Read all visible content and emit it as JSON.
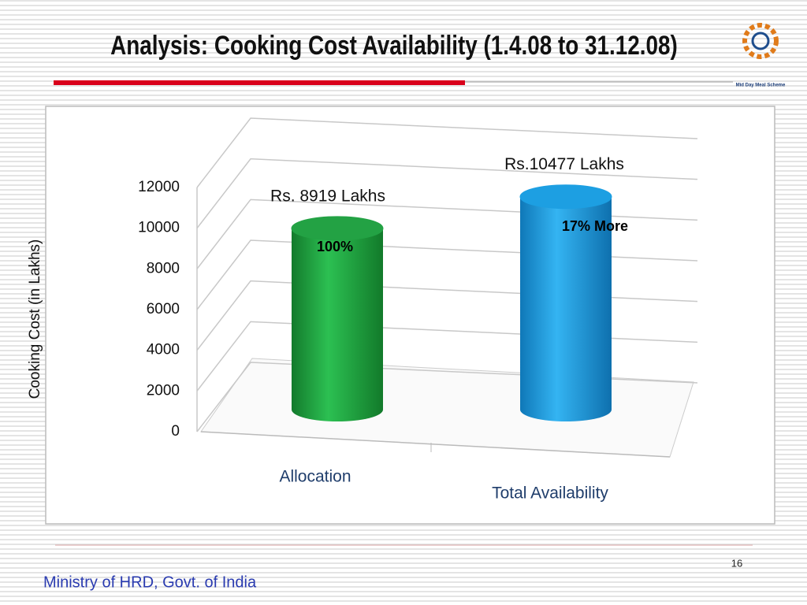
{
  "chart_data": {
    "type": "bar",
    "title": "Analysis: Cooking Cost Availability (1.4.08 to 31.12.08)",
    "y_label": "Cooking Cost (in Lakhs)",
    "categories": [
      "Allocation",
      "Total Availability"
    ],
    "values": [
      8919,
      10477
    ],
    "value_labels": [
      "Rs. 8919 Lakhs",
      "Rs.10477 Lakhs"
    ],
    "annotations": [
      "100%",
      "17% More"
    ],
    "colors": [
      "#23a244",
      "#1d9fe2"
    ],
    "ylim": [
      0,
      12000
    ],
    "yticks": [
      0,
      2000,
      4000,
      6000,
      8000,
      10000,
      12000
    ],
    "grid": true
  },
  "logo_text": "Mid Day Meal Scheme",
  "page_number": 16,
  "footer": "Ministry of HRD, Govt. of India"
}
